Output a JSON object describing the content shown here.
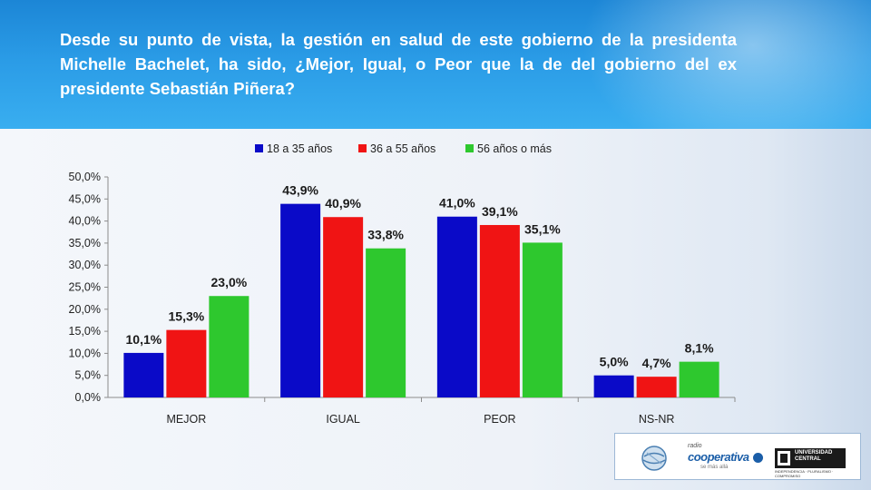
{
  "question": "Desde su punto de vista, la gestión en salud de este gobierno de la presidenta Michelle Bachelet, ha sido, ¿Mejor, Igual, o Peor que la de del gobierno del ex presidente Sebastián Piñera?",
  "logos": {
    "coop_small": "radio",
    "coop_main": "cooperativa",
    "coop_tag": "se más allá",
    "uc_name": "UNIVERSIDAD CENTRAL",
    "uc_tagline": "INDEPENDENCIA · PLURALISMO · COMPROMISO"
  },
  "chart_data": {
    "type": "bar",
    "title": "",
    "xlabel": "",
    "ylabel": "",
    "categories": [
      "MEJOR",
      "IGUAL",
      "PEOR",
      "NS-NR"
    ],
    "series": [
      {
        "name": "18 a 35 años",
        "color": "#0a0ac8",
        "values": [
          10.1,
          43.9,
          41.0,
          5.0
        ],
        "labels": [
          "10,1%",
          "43,9%",
          "41,0%",
          "5,0%"
        ]
      },
      {
        "name": "36 a 55 años",
        "color": "#f01414",
        "values": [
          15.3,
          40.9,
          39.1,
          4.7
        ],
        "labels": [
          "15,3%",
          "40,9%",
          "39,1%",
          "4,7%"
        ]
      },
      {
        "name": "56 años o más",
        "color": "#2ec82e",
        "values": [
          23.0,
          33.8,
          35.1,
          8.1
        ],
        "labels": [
          "23,0%",
          "33,8%",
          "35,1%",
          "8,1%"
        ]
      }
    ],
    "ylim": [
      0,
      50
    ],
    "yticks": [
      "0,0%",
      "5,0%",
      "10,0%",
      "15,0%",
      "20,0%",
      "25,0%",
      "30,0%",
      "35,0%",
      "40,0%",
      "45,0%",
      "50,0%"
    ],
    "grid": false,
    "legend_position": "top"
  }
}
